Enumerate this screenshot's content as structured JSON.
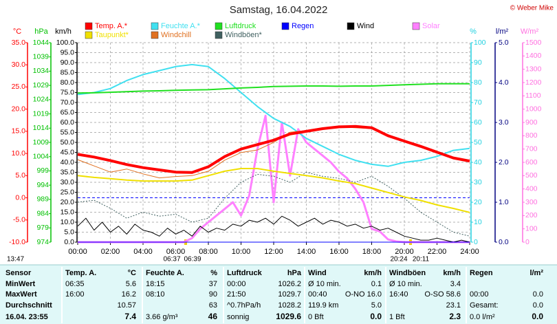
{
  "chart_data": {
    "type": "line",
    "title": "Samstag, 16.04.2022",
    "copyright": "© Weber Mike",
    "timestamp": "13:47",
    "annotations": [
      "06:37",
      "06:39",
      "20:24",
      "20:11"
    ],
    "x": [
      0,
      1,
      2,
      3,
      4,
      5,
      6,
      7,
      8,
      9,
      10,
      11,
      12,
      13,
      14,
      15,
      16,
      17,
      18,
      19,
      20,
      21,
      22,
      23,
      24
    ],
    "xlim": [
      0,
      24
    ],
    "xticks": [
      {
        "value": 0,
        "label": "00:00"
      },
      {
        "value": 2,
        "label": "02:00"
      },
      {
        "value": 4,
        "label": "04:00"
      },
      {
        "value": 6,
        "label": "06:00"
      },
      {
        "value": 8,
        "label": "08:00"
      },
      {
        "value": 10,
        "label": "10:00"
      },
      {
        "value": 12,
        "label": "12:00"
      },
      {
        "value": 14,
        "label": "14:00"
      },
      {
        "value": 16,
        "label": "16:00"
      },
      {
        "value": 18,
        "label": "18:00"
      },
      {
        "value": 20,
        "label": "20:00"
      },
      {
        "value": 22,
        "label": "22:00"
      },
      {
        "value": 24,
        "label": "24:00"
      }
    ],
    "grid": true,
    "axes": [
      {
        "label": "°C",
        "color": "#ff0000",
        "lim": [
          -10,
          35
        ],
        "ticks": [
          {
            "value": 35,
            "label": "35.0"
          },
          {
            "value": 30,
            "label": "30.0"
          },
          {
            "value": 25,
            "label": "25.0"
          },
          {
            "value": 20,
            "label": "20.0"
          },
          {
            "value": 15,
            "label": "15.0"
          },
          {
            "value": 10,
            "label": "10.0"
          },
          {
            "value": 5,
            "label": "5.0"
          },
          {
            "value": 0,
            "label": "0.0"
          },
          {
            "value": -5,
            "label": "-5.0"
          },
          {
            "value": -10,
            "label": "-10.0"
          }
        ]
      },
      {
        "label": "hPa",
        "color": "#00c000",
        "lim": [
          974,
          1044
        ],
        "ticks": [
          1044,
          1039,
          1034,
          1029,
          1024,
          1019,
          1014,
          1009,
          1004,
          999,
          994,
          989,
          984,
          979,
          974
        ]
      },
      {
        "label": "km/h",
        "color": "#000000",
        "lim": [
          0,
          100
        ],
        "ticks": [
          {
            "value": 100,
            "label": "100.0"
          },
          {
            "value": 95,
            "label": "95.0"
          },
          {
            "value": 90,
            "label": "90.0"
          },
          {
            "value": 85,
            "label": "85.0"
          },
          {
            "value": 80,
            "label": "80.0"
          },
          {
            "value": 75,
            "label": "75.0"
          },
          {
            "value": 70,
            "label": "70.0"
          },
          {
            "value": 65,
            "label": "65.0"
          },
          {
            "value": 60,
            "label": "60.0"
          },
          {
            "value": 55,
            "label": "55.0"
          },
          {
            "value": 50,
            "label": "50.0"
          },
          {
            "value": 45,
            "label": "45.0"
          },
          {
            "value": 40,
            "label": "40.0"
          },
          {
            "value": 35,
            "label": "35.0"
          },
          {
            "value": 30,
            "label": "30.0"
          },
          {
            "value": 25,
            "label": "25.0"
          },
          {
            "value": 20,
            "label": "20.0"
          },
          {
            "value": 15,
            "label": "15.0"
          },
          {
            "value": 10,
            "label": "10.0"
          },
          {
            "value": 5,
            "label": "5.0"
          },
          {
            "value": 0,
            "label": "0.0"
          }
        ]
      },
      {
        "label": "%",
        "color": "#20d0e0",
        "lim": [
          0,
          100
        ],
        "ticks": [
          100,
          90,
          80,
          70,
          60,
          50,
          40,
          30,
          20,
          10,
          0
        ]
      },
      {
        "label": "l/m²",
        "color": "#000080",
        "lim": [
          0,
          5
        ],
        "ticks": [
          {
            "value": 5,
            "label": "5.0"
          },
          {
            "value": 4,
            "label": "4.0"
          },
          {
            "value": 3,
            "label": "3.0"
          },
          {
            "value": 2,
            "label": "2.0"
          },
          {
            "value": 1,
            "label": "1.0"
          },
          {
            "value": 0,
            "label": "0.0"
          }
        ]
      },
      {
        "label": "W/m²",
        "color": "#ff70e0",
        "lim": [
          0,
          1500
        ],
        "ticks": [
          1500,
          1400,
          1300,
          1200,
          1100,
          1000,
          900,
          800,
          700,
          600,
          500,
          400,
          300,
          200,
          100,
          0
        ]
      }
    ],
    "series": [
      {
        "name": "Solar",
        "color": "#ff80ff",
        "axis": "W/m²",
        "width": 3,
        "x": [
          0,
          0.5,
          1,
          1.5,
          2,
          2.5,
          3,
          3.5,
          4,
          4.5,
          5,
          5.5,
          6,
          6.5,
          7,
          7.5,
          8,
          8.5,
          9,
          9.5,
          10,
          10.5,
          11,
          11.5,
          12,
          12.5,
          13,
          13.5,
          14,
          14.5,
          15,
          15.5,
          16,
          16.5,
          17,
          17.5,
          18,
          18.5,
          19,
          19.5,
          20,
          20.5,
          21,
          21.5,
          22,
          22.5,
          23,
          23.5,
          24
        ],
        "values": [
          0,
          0,
          0,
          0,
          0,
          0,
          0,
          0,
          0,
          0,
          0,
          0,
          0,
          0,
          30,
          100,
          150,
          200,
          250,
          300,
          200,
          350,
          700,
          950,
          300,
          900,
          500,
          850,
          750,
          700,
          650,
          600,
          530,
          480,
          400,
          300,
          100,
          80,
          20,
          5,
          0,
          0,
          0,
          0,
          0,
          0,
          0,
          0,
          0
        ]
      },
      {
        "name": "Windböen*",
        "color": "#406060",
        "axis": "km/h",
        "width": 1,
        "dash": true,
        "values": [
          20,
          21,
          17,
          12,
          15,
          13,
          14,
          10,
          12,
          22,
          30,
          34,
          33,
          30,
          35,
          33,
          32,
          30,
          33,
          28,
          22,
          15,
          10,
          5,
          3
        ]
      },
      {
        "name": "Wind",
        "color": "#000000",
        "axis": "km/h",
        "width": 1,
        "x": [
          0,
          0.5,
          1,
          1.5,
          2,
          2.5,
          3,
          3.5,
          4,
          4.5,
          5,
          5.5,
          6,
          6.5,
          7,
          7.5,
          8,
          8.5,
          9,
          9.5,
          10,
          10.5,
          11,
          11.5,
          12,
          12.5,
          13,
          13.5,
          14,
          14.5,
          15,
          15.5,
          16,
          16.5,
          17,
          17.5,
          18,
          18.5,
          19,
          19.5,
          20,
          20.5,
          21,
          21.5,
          22,
          22.5,
          23,
          23.5,
          24
        ],
        "values": [
          8,
          12,
          6,
          10,
          5,
          8,
          4,
          9,
          6,
          5,
          3,
          7,
          4,
          6,
          3,
          8,
          5,
          7,
          6,
          9,
          8,
          11,
          10,
          12,
          9,
          13,
          11,
          8,
          10,
          12,
          9,
          11,
          10,
          8,
          9,
          7,
          8,
          6,
          7,
          5,
          3,
          2,
          1,
          1,
          2,
          1,
          0,
          1,
          0
        ]
      },
      {
        "name": "Regen",
        "color": "#0000ff",
        "axis": "l/m²",
        "width": 1,
        "values": [
          0,
          0,
          0,
          0,
          0,
          0,
          0,
          0,
          0,
          0,
          0,
          0,
          0,
          0,
          0,
          0,
          0,
          0,
          0,
          0,
          0,
          0,
          0,
          0,
          0
        ]
      },
      {
        "name": "Feuchte A.*",
        "color": "#40e0f0",
        "axis": "%",
        "width": 2,
        "values": [
          74,
          75,
          77,
          81,
          84,
          86,
          88,
          89,
          88,
          82,
          75,
          68,
          62,
          58,
          52,
          48,
          44,
          41,
          39,
          38,
          40,
          41,
          43,
          46,
          47
        ]
      },
      {
        "name": "Luftdruck",
        "color": "#20e020",
        "axis": "hPa",
        "width": 2,
        "values": [
          1026.3,
          1026.4,
          1026.6,
          1026.8,
          1027.0,
          1027.1,
          1027.3,
          1027.4,
          1027.5,
          1027.8,
          1028.1,
          1028.3,
          1028.6,
          1028.7,
          1028.8,
          1028.8,
          1028.7,
          1028.8,
          1028.8,
          1029.0,
          1029.2,
          1029.4,
          1029.6,
          1029.6,
          1029.6
        ]
      },
      {
        "name": "Taupunkt*",
        "color": "#f0e000",
        "axis": "°C",
        "width": 2,
        "values": [
          5.0,
          4.6,
          4.3,
          4.0,
          3.8,
          3.8,
          3.8,
          4.0,
          5.0,
          6.0,
          6.6,
          6.6,
          6.0,
          5.5,
          5.0,
          4.5,
          3.8,
          3.2,
          2.2,
          1.2,
          0.2,
          -0.6,
          -1.6,
          -2.4,
          -3.3
        ]
      },
      {
        "name": "Windchill",
        "color": "#e07020",
        "axis": "°C",
        "width": 1,
        "values": [
          8.6,
          7.2,
          5.8,
          6.5,
          5.4,
          4.5,
          4.8,
          5.0,
          6.0,
          8.5,
          10.2,
          10.8,
          12.5,
          14.8,
          15.2,
          15.8,
          16.0,
          15.8,
          15.6,
          14.0,
          12.8,
          11.6,
          10.3,
          9.0,
          8.3
        ]
      },
      {
        "name": "Temp. A.*",
        "color": "#ff0000",
        "axis": "°C",
        "width": 4,
        "values": [
          9.8,
          9.2,
          8.4,
          7.5,
          6.8,
          6.3,
          5.8,
          5.7,
          7.0,
          9.3,
          11.0,
          12.0,
          13.0,
          14.4,
          15.0,
          15.6,
          16.0,
          16.1,
          15.8,
          14.0,
          12.8,
          11.6,
          10.3,
          9.0,
          8.3
        ]
      }
    ]
  },
  "table": {
    "header": [
      "Sensor",
      "Temp. A.",
      "°C",
      "Feuchte A.",
      "%",
      "Luftdruck",
      "hPa",
      "Wind",
      "km/h",
      "Windböen",
      "km/h",
      "Regen",
      "l/m²"
    ],
    "rows": [
      [
        "MinWert",
        "06:35",
        "5.6",
        "18:15",
        "37",
        "00:00",
        "1026.2",
        "Ø 10 min.",
        "0.1",
        "Ø 10 min.",
        "3.4",
        null,
        null
      ],
      [
        "MaxWert",
        "16:00",
        "16.2",
        "08:10",
        "90",
        "21:50",
        "1029.7",
        "00:40",
        "O-NO 16.0",
        "16:40",
        "O-SO 58.6",
        "00:00",
        "0.0"
      ],
      [
        "Durchschnitt",
        null,
        "10.57",
        null,
        "63",
        "^0.7hPa/h",
        "1028.2",
        "119.9 km",
        "5.0",
        null,
        "23.1",
        "Gesamt:",
        "0.0"
      ],
      [
        "16.04. 23:55",
        null,
        "7.4",
        "3.66 g/m³",
        "46",
        "sonnig",
        "1029.6",
        "0 Bft",
        "0.0",
        "1 Bft",
        "2.3",
        "0.0 l/m²",
        "0.0"
      ]
    ]
  }
}
